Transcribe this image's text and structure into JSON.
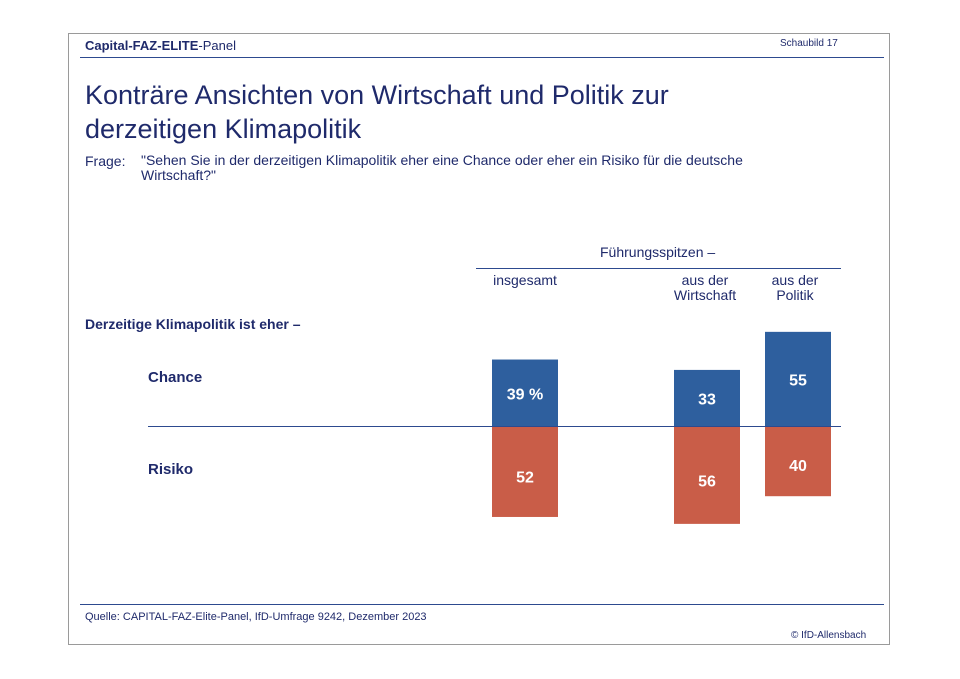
{
  "header": {
    "panel_bold_1": "Capital-FAZ-",
    "panel_bold_2": "ELITE",
    "panel_suffix": "-Panel",
    "figure_number": "Schaubild  17"
  },
  "title": "Konträre Ansichten von Wirtschaft und Politik zur derzeitigen Klimapolitik",
  "question": {
    "label": "Frage:",
    "text": "\"Sehen Sie in der derzeitigen Klimapolitik eher eine Chance oder eher ein Risiko für die deutsche Wirtschaft?\""
  },
  "chart_data": {
    "type": "bar",
    "orientation": "diverging-vertical",
    "group_header": "Führungsspitzen –",
    "row_intro": "Derzeitige Klimapolitik ist eher –",
    "categories": [
      "insgesamt",
      "aus der Wirtschaft",
      "aus der Politik"
    ],
    "series": [
      {
        "name": "Chance",
        "color": "#2e5f9e",
        "values": [
          39,
          33,
          55
        ],
        "labels": [
          "39 %",
          "33",
          "55"
        ]
      },
      {
        "name": "Risiko",
        "color": "#c95d48",
        "values": [
          52,
          56,
          40
        ],
        "labels": [
          "52",
          "56",
          "40"
        ]
      }
    ],
    "unit": "%",
    "ylim": [
      0,
      60
    ]
  },
  "footer": {
    "source": "Quelle: CAPITAL-FAZ-Elite-Panel, IfD-Umfrage 9242, Dezember 2023",
    "copyright": "© IfD-Allensbach"
  }
}
